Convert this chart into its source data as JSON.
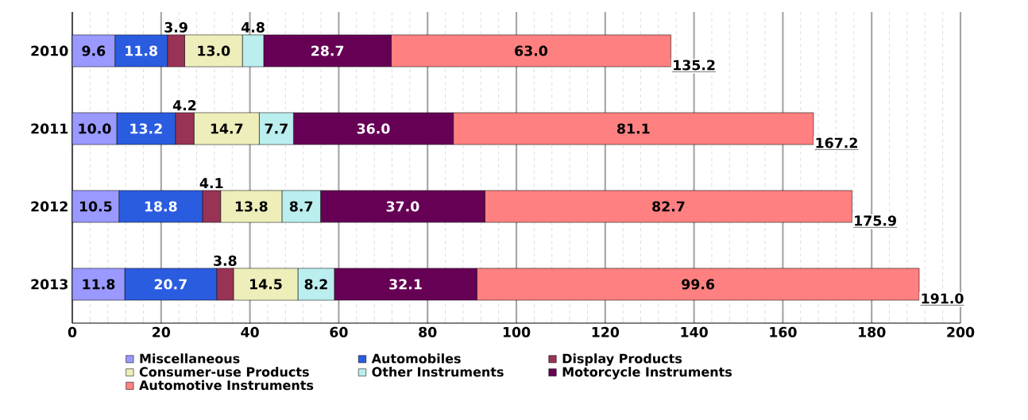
{
  "chart_data": {
    "type": "bar",
    "orientation": "horizontal",
    "stacked": true,
    "categories": [
      "2010",
      "2011",
      "2012",
      "2013"
    ],
    "series": [
      {
        "name": "Miscellaneous",
        "color": "#9999ff",
        "values": [
          9.6,
          10.0,
          10.5,
          11.8
        ],
        "value_labels": [
          "9.6",
          "10.0",
          "10.5",
          "11.8"
        ]
      },
      {
        "name": "Automobiles",
        "color": "#2a5ce0",
        "values": [
          11.8,
          13.2,
          18.8,
          20.7
        ],
        "value_labels": [
          "11.8",
          "13.2",
          "18.8",
          "20.7"
        ]
      },
      {
        "name": "Display Products",
        "color": "#993355",
        "values": [
          3.9,
          4.2,
          4.1,
          3.8
        ],
        "value_labels": [
          "3.9",
          "4.2",
          "4.1",
          "3.8"
        ]
      },
      {
        "name": "Consumer-use Products",
        "color": "#eeeebb",
        "values": [
          13.0,
          14.7,
          13.8,
          14.5
        ],
        "value_labels": [
          "13.0",
          "14.7",
          "13.8",
          "14.5"
        ]
      },
      {
        "name": "Other Instruments",
        "color": "#bbeeee",
        "values": [
          4.8,
          7.7,
          8.7,
          8.2
        ],
        "value_labels": [
          "4.8",
          "7.7",
          "8.7",
          "8.2"
        ]
      },
      {
        "name": "Motorcycle Instruments",
        "color": "#660055",
        "values": [
          28.7,
          36.0,
          37.0,
          32.1
        ],
        "value_labels": [
          "28.7",
          "36.0",
          "37.0",
          "32.1"
        ]
      },
      {
        "name": "Automotive Instruments",
        "color": "#ff8080",
        "values": [
          63.0,
          81.1,
          82.7,
          99.6
        ],
        "value_labels": [
          "63.0",
          "81.1",
          "82.7",
          "99.6"
        ]
      }
    ],
    "xlim": [
      0,
      200
    ],
    "xticks": [
      0,
      20,
      40,
      60,
      80,
      100,
      120,
      140,
      160,
      180,
      200
    ],
    "totals": [
      "135.2",
      "167.2",
      "175.9",
      "191.0"
    ],
    "grid": "x",
    "legend": "bottom"
  }
}
